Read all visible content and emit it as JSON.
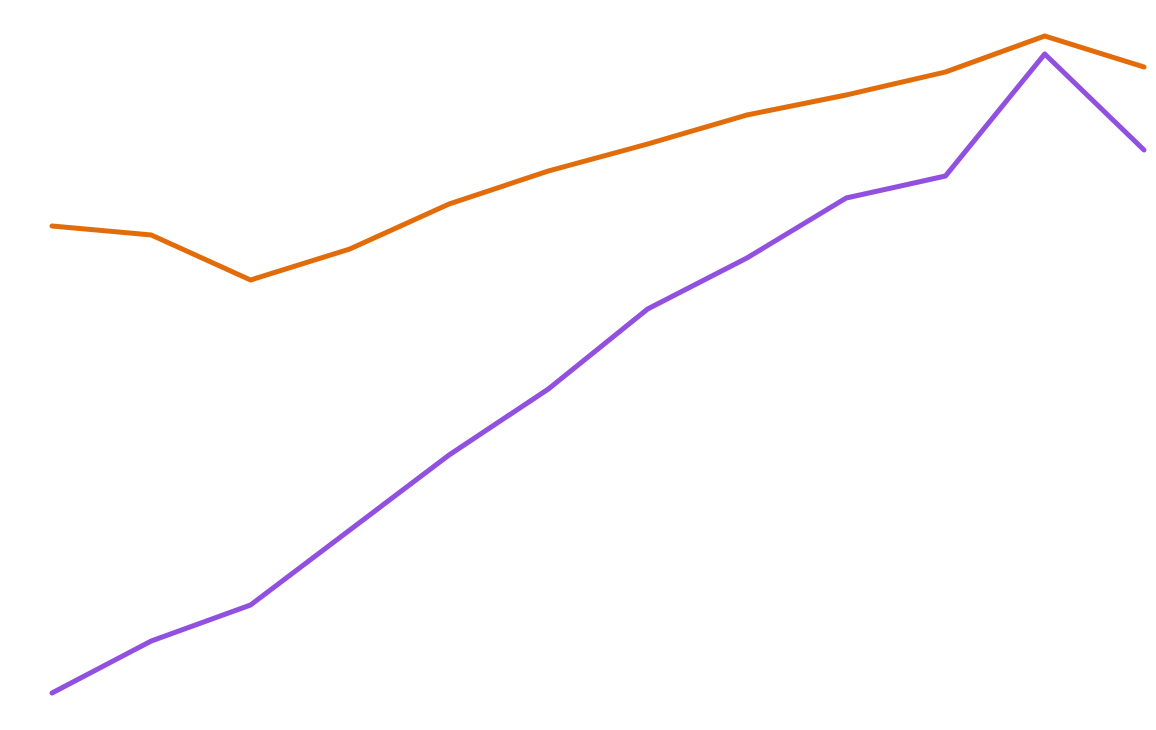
{
  "chart_data": {
    "type": "line",
    "categories": [
      null,
      null,
      null,
      null,
      null,
      null,
      null,
      null,
      null,
      null,
      null,
      null
    ],
    "series": [
      {
        "color": "#e36c0a",
        "values": [
          504,
          495,
          450,
          481,
          526,
          559,
          586,
          615,
          635,
          658,
          694,
          663
        ]
      },
      {
        "color": "#9150e0",
        "values": [
          37,
          89,
          125,
          200,
          275,
          341,
          421,
          472,
          532,
          554,
          676,
          580
        ]
      }
    ],
    "ylim": [
      0,
      730
    ]
  }
}
